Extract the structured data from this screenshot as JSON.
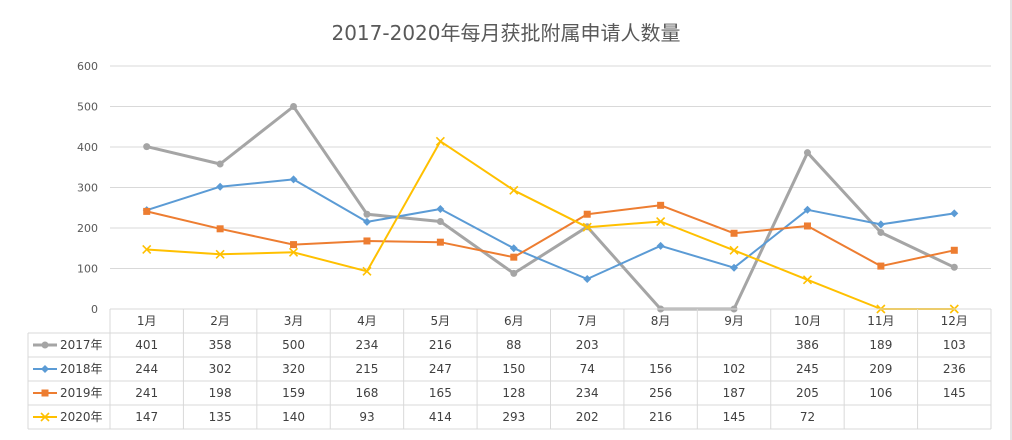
{
  "chart_data": {
    "type": "line",
    "title": "2017-2020年每月获批附属申请人数量",
    "categories": [
      "1月",
      "2月",
      "3月",
      "4月",
      "5月",
      "6月",
      "7月",
      "8月",
      "9月",
      "10月",
      "11月",
      "12月"
    ],
    "ylim": [
      0,
      600
    ],
    "yticks": [
      0,
      100,
      200,
      300,
      400,
      500,
      600
    ],
    "grid": true,
    "legend": "data-table",
    "series": [
      {
        "name": "2017年",
        "color": "#a5a5a5",
        "marker": "circle",
        "values": [
          401,
          358,
          500,
          234,
          216,
          88,
          203,
          0,
          0,
          386,
          189,
          103
        ],
        "labels": [
          "401",
          "358",
          "500",
          "234",
          "216",
          "88",
          "203",
          "",
          "",
          "386",
          "189",
          "103"
        ]
      },
      {
        "name": "2018年",
        "color": "#5b9bd5",
        "marker": "diamond",
        "values": [
          244,
          302,
          320,
          215,
          247,
          150,
          74,
          156,
          102,
          245,
          209,
          236
        ],
        "labels": [
          "244",
          "302",
          "320",
          "215",
          "247",
          "150",
          "74",
          "156",
          "102",
          "245",
          "209",
          "236"
        ]
      },
      {
        "name": "2019年",
        "color": "#ed7d31",
        "marker": "square",
        "values": [
          241,
          198,
          159,
          168,
          165,
          128,
          234,
          256,
          187,
          205,
          106,
          145
        ],
        "labels": [
          "241",
          "198",
          "159",
          "168",
          "165",
          "128",
          "234",
          "256",
          "187",
          "205",
          "106",
          "145"
        ]
      },
      {
        "name": "2020年",
        "color": "#ffc000",
        "marker": "x",
        "values": [
          147,
          135,
          140,
          93,
          414,
          293,
          202,
          216,
          145,
          72,
          0,
          0
        ],
        "labels": [
          "147",
          "135",
          "140",
          "93",
          "414",
          "293",
          "202",
          "216",
          "145",
          "72",
          "",
          ""
        ]
      }
    ]
  }
}
